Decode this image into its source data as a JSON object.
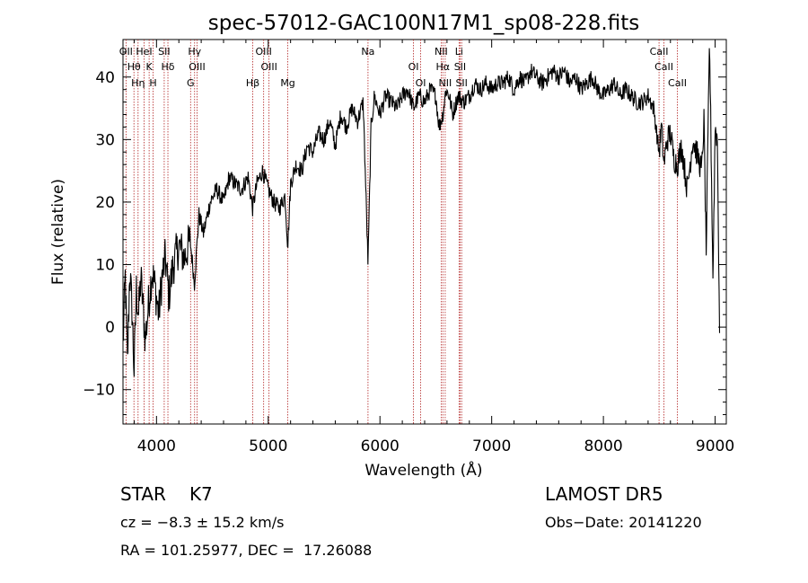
{
  "chart_data": {
    "type": "line",
    "title": "spec-57012-GAC100N17M1_sp08-228.fits",
    "xlabel": "Wavelength (Å)",
    "ylabel": "Flux (relative)",
    "xlim": [
      3700,
      9100
    ],
    "ylim": [
      -15.5,
      46
    ],
    "xticks": [
      4000,
      5000,
      6000,
      7000,
      8000,
      9000
    ],
    "yticks": [
      -10,
      0,
      10,
      20,
      30,
      40
    ],
    "grid": false,
    "line_color": "#000000",
    "marker_line_color": "#b22222",
    "series": [
      {
        "x": [
          3700,
          3720,
          3740,
          3760,
          3780,
          3800,
          3820,
          3840,
          3860,
          3880,
          3900,
          3930,
          3960,
          3990,
          4020,
          4050,
          4080,
          4110,
          4150,
          4200,
          4250,
          4300,
          4340,
          4380,
          4420,
          4480,
          4540,
          4600,
          4650,
          4700,
          4760,
          4820,
          4860,
          4900,
          4950,
          5000,
          5050,
          5100,
          5150,
          5175,
          5200,
          5250,
          5300,
          5350,
          5400,
          5450,
          5500,
          5550,
          5600,
          5650,
          5700,
          5750,
          5800,
          5850,
          5893,
          5920,
          5950,
          6000,
          6050,
          6100,
          6150,
          6200,
          6250,
          6300,
          6350,
          6400,
          6450,
          6500,
          6530,
          6563,
          6590,
          6620,
          6650,
          6700,
          6750,
          6800,
          6850,
          6900,
          6950,
          7000,
          7050,
          7100,
          7150,
          7200,
          7250,
          7300,
          7350,
          7400,
          7450,
          7500,
          7550,
          7600,
          7650,
          7700,
          7750,
          7800,
          7850,
          7900,
          7950,
          8000,
          8050,
          8100,
          8150,
          8200,
          8250,
          8300,
          8350,
          8400,
          8450,
          8498,
          8520,
          8542,
          8570,
          8600,
          8630,
          8662,
          8700,
          8750,
          8800,
          8850,
          8880,
          8900,
          8920,
          8950,
          8980,
          9000,
          9020,
          9040
        ],
        "y": [
          -3,
          8,
          -6,
          9,
          3,
          -7,
          6,
          2,
          8,
          3,
          -2,
          4,
          9,
          6,
          2,
          8,
          11,
          5,
          10,
          13,
          11,
          14,
          7,
          18,
          15,
          20,
          22,
          20,
          24,
          23,
          22,
          24,
          19,
          23,
          25,
          22,
          20,
          19,
          21,
          13,
          23,
          26,
          25,
          29,
          28,
          31,
          30,
          33,
          29,
          34,
          32,
          35,
          33,
          36,
          10,
          32,
          37,
          34,
          37,
          36,
          35,
          37,
          38,
          35,
          37,
          36,
          38,
          37,
          32,
          34,
          38,
          37,
          34,
          37,
          36,
          37,
          39,
          38,
          39,
          38,
          39,
          39,
          40,
          38,
          40,
          39,
          41,
          40,
          39,
          40,
          41,
          40,
          41,
          39,
          40,
          38,
          39,
          40,
          38,
          37,
          38,
          39,
          37,
          38,
          37,
          36,
          36,
          37,
          35,
          28,
          32,
          26,
          30,
          31,
          27,
          26,
          29,
          22,
          30,
          27,
          25,
          33,
          12,
          46,
          8,
          32,
          30,
          0
        ]
      }
    ],
    "lines": [
      {
        "label": "Hθ",
        "x": 3798
      },
      {
        "label": "OII",
        "x": 3727
      },
      {
        "label": "Hη",
        "x": 3835
      },
      {
        "label": "K",
        "x": 3934
      },
      {
        "label": "HeI",
        "x": 3889
      },
      {
        "label": "H",
        "x": 3969
      },
      {
        "label": "Hδ",
        "x": 4102
      },
      {
        "label": "SII",
        "x": 4069
      },
      {
        "label": "OIII",
        "x": 4363
      },
      {
        "label": "Hγ",
        "x": 4341
      },
      {
        "label": "G",
        "x": 4305
      },
      {
        "label": "Hβ",
        "x": 4861
      },
      {
        "label": "OIII",
        "x": 4959
      },
      {
        "label": "OIII",
        "x": 5007
      },
      {
        "label": "Mg",
        "x": 5175
      },
      {
        "label": "Na",
        "x": 5893
      },
      {
        "label": "OI",
        "x": 6300
      },
      {
        "label": "OI",
        "x": 6364
      },
      {
        "label": "Hα",
        "x": 6563
      },
      {
        "label": "NII",
        "x": 6548
      },
      {
        "label": "NII",
        "x": 6584
      },
      {
        "label": "SII",
        "x": 6717
      },
      {
        "label": "Li",
        "x": 6708
      },
      {
        "label": "SII",
        "x": 6731
      },
      {
        "label": "CaII",
        "x": 8498
      },
      {
        "label": "CaII",
        "x": 8542
      },
      {
        "label": "CaII",
        "x": 8662
      }
    ]
  },
  "info": {
    "object_class": "STAR",
    "subclass": "K7",
    "survey": "LAMOST DR5",
    "cz": "cz = −8.3 ± 15.2 km/s",
    "obs_date": "Obs−Date: 20141220",
    "coords": "RA = 101.25977, DEC =  17.26088"
  }
}
